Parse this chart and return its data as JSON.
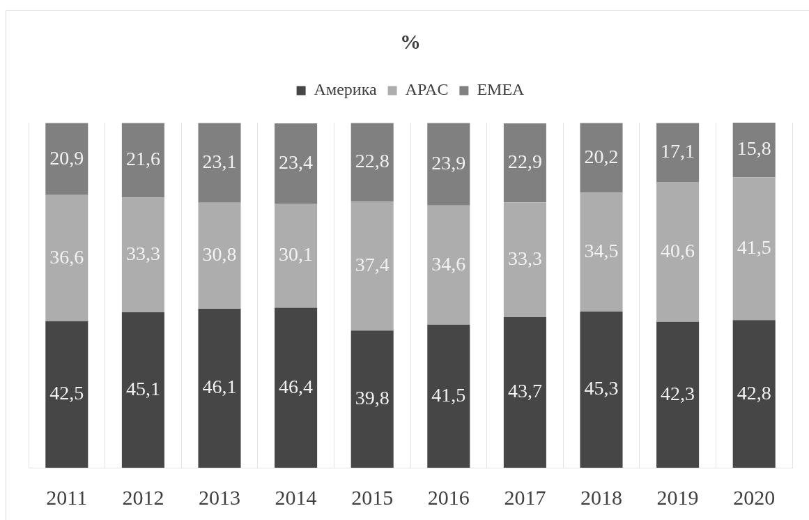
{
  "chart_data": {
    "type": "bar",
    "title": "%",
    "stacked": true,
    "categories": [
      "2011",
      "2012",
      "2013",
      "2014",
      "2015",
      "2016",
      "2017",
      "2018",
      "2019",
      "2020"
    ],
    "series": [
      {
        "name": "Америка",
        "color": "#464646",
        "values": [
          42.5,
          45.1,
          46.1,
          46.4,
          39.8,
          41.5,
          43.7,
          45.3,
          42.3,
          42.8
        ],
        "value_labels": [
          "42,5",
          "45,1",
          "46,1",
          "46,4",
          "39,8",
          "41,5",
          "43,7",
          "45,3",
          "42,3",
          "42,8"
        ]
      },
      {
        "name": "APAC",
        "color": "#adadad",
        "values": [
          36.6,
          33.3,
          30.8,
          30.1,
          37.4,
          34.6,
          33.3,
          34.5,
          40.6,
          41.5
        ],
        "value_labels": [
          "36,6",
          "33,3",
          "30,8",
          "30,1",
          "37,4",
          "34,6",
          "33,3",
          "34,5",
          "40,6",
          "41,5"
        ]
      },
      {
        "name": "EMEA",
        "color": "#808080",
        "values": [
          20.9,
          21.6,
          23.1,
          23.4,
          22.8,
          23.9,
          22.9,
          20.2,
          17.1,
          15.8
        ],
        "value_labels": [
          "20,9",
          "21,6",
          "23,1",
          "23,4",
          "22,8",
          "23,9",
          "22,9",
          "20,2",
          "17,1",
          "15,8"
        ]
      }
    ],
    "legend": "top",
    "grid": "x"
  }
}
